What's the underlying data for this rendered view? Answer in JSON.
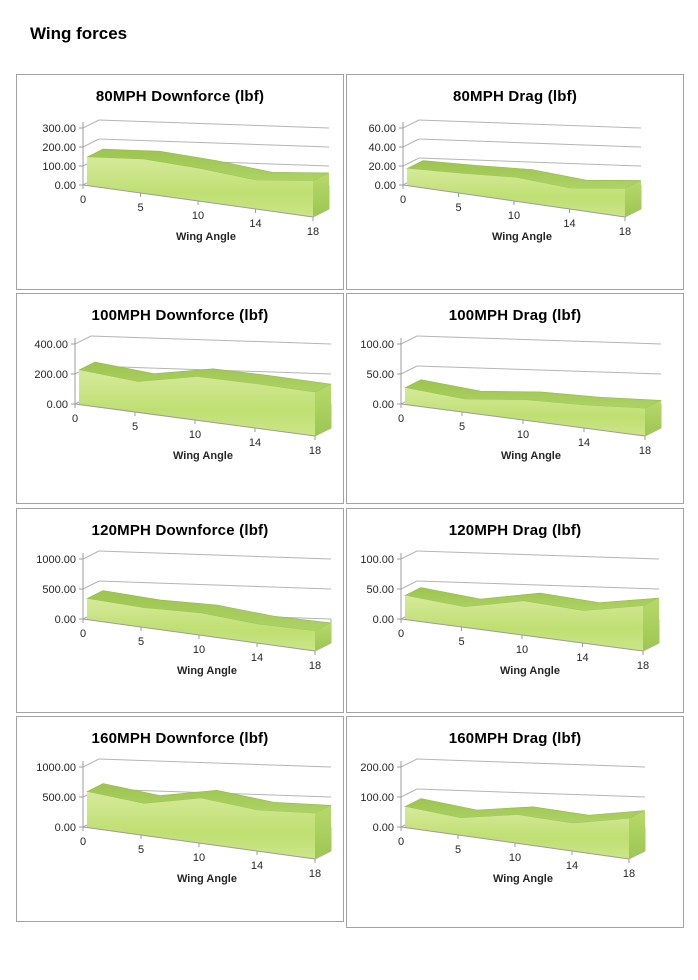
{
  "page": {
    "title": "Wing forces"
  },
  "chart_data": [
    {
      "type": "area",
      "title": "80MPH Downforce (lbf)",
      "xlabel": "Wing Angle",
      "x_ticks": [
        "0",
        "5",
        "10",
        "14",
        "18"
      ],
      "y_ticks": [
        "0.00",
        "100.00",
        "200.00",
        "300.00"
      ],
      "ylim": [
        0,
        300
      ],
      "values": [
        150,
        180,
        172,
        152,
        190
      ],
      "grid": true,
      "legend": "none"
    },
    {
      "type": "area",
      "title": "80MPH Drag (lbf)",
      "xlabel": "Wing Angle",
      "x_ticks": [
        "0",
        "5",
        "10",
        "14",
        "18"
      ],
      "y_ticks": [
        "0.00",
        "20.00",
        "40.00",
        "60.00"
      ],
      "ylim": [
        0,
        60
      ],
      "values": [
        18,
        21,
        25,
        22,
        30
      ],
      "grid": true,
      "legend": "none"
    },
    {
      "type": "area",
      "title": "100MPH Downforce (lbf)",
      "xlabel": "Wing Angle",
      "x_ticks": [
        "0",
        "5",
        "10",
        "14",
        "18"
      ],
      "y_ticks": [
        "0.00",
        "200.00",
        "400.00"
      ],
      "ylim": [
        0,
        400
      ],
      "values": [
        230,
        205,
        290,
        295,
        292
      ],
      "grid": true,
      "legend": "none"
    },
    {
      "type": "area",
      "title": "100MPH Drag (lbf)",
      "xlabel": "Wing Angle",
      "x_ticks": [
        "0",
        "5",
        "10",
        "14",
        "18"
      ],
      "y_ticks": [
        "0.00",
        "50.00",
        "100.00"
      ],
      "ylim": [
        0,
        100
      ],
      "values": [
        28,
        22,
        34,
        38,
        46
      ],
      "grid": true,
      "legend": "none"
    },
    {
      "type": "area",
      "title": "120MPH Downforce (lbf)",
      "xlabel": "Wing Angle",
      "x_ticks": [
        "0",
        "5",
        "10",
        "14",
        "18"
      ],
      "y_ticks": [
        "0.00",
        "500.00",
        "1000.00"
      ],
      "ylim": [
        0,
        1000
      ],
      "values": [
        350,
        325,
        370,
        315,
        335
      ],
      "grid": true,
      "legend": "none"
    },
    {
      "type": "area",
      "title": "120MPH Drag (lbf)",
      "xlabel": "Wing Angle",
      "x_ticks": [
        "0",
        "5",
        "10",
        "14",
        "18"
      ],
      "y_ticks": [
        "0.00",
        "50.00",
        "100.00"
      ],
      "ylim": [
        0,
        100
      ],
      "values": [
        40,
        34,
        57,
        54,
        75
      ],
      "grid": true,
      "legend": "none"
    },
    {
      "type": "area",
      "title": "160MPH Downforce (lbf)",
      "xlabel": "Wing Angle",
      "x_ticks": [
        "0",
        "5",
        "10",
        "14",
        "18"
      ],
      "y_ticks": [
        "0.00",
        "500.00",
        "1000.00"
      ],
      "ylim": [
        0,
        1000
      ],
      "values": [
        600,
        530,
        750,
        680,
        760
      ],
      "grid": true,
      "legend": "none"
    },
    {
      "type": "area",
      "title": "160MPH Drag (lbf)",
      "xlabel": "Wing Angle",
      "x_ticks": [
        "0",
        "5",
        "10",
        "14",
        "18"
      ],
      "y_ticks": [
        "0.00",
        "100.00",
        "200.00"
      ],
      "ylim": [
        0,
        200
      ],
      "values": [
        70,
        58,
        95,
        93,
        135
      ],
      "grid": true,
      "legend": "none"
    }
  ],
  "colors": {
    "area_top_light": "#d6ea9b",
    "area_mid": "#bfdf72",
    "area_bottom": "#cbe687",
    "band_dark": "#9cc44e",
    "band_light": "#aed267",
    "side_light": "#b7d96b",
    "side_dark": "#9dc653",
    "axis_line": "#9c9c9c",
    "grid_line": "#b5b5b5",
    "tick_text": "#262626",
    "panel_border": "#a3a3a3"
  }
}
